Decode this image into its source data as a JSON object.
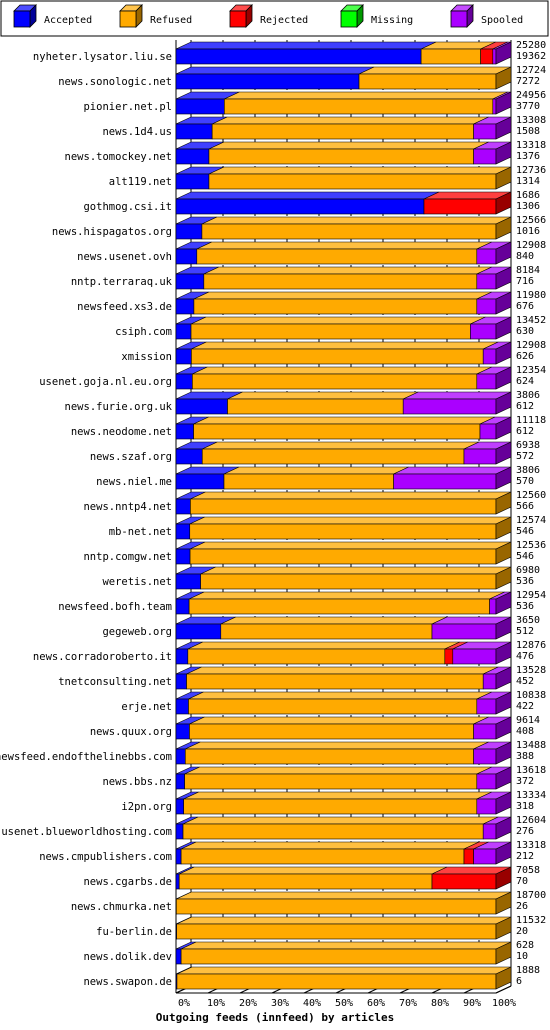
{
  "colors": {
    "Accepted": "#0000ff",
    "Refused": "#ffaa00",
    "Rejected": "#ff0000",
    "Missing": "#00ff00",
    "Spooled": "#aa00ff"
  },
  "chart_data": {
    "type": "bar",
    "orientation": "horizontal",
    "stacked": true,
    "style": "3d",
    "title": "",
    "xlabel": "Outgoing feeds (innfeed) by articles",
    "ylabel": "",
    "xlim": [
      0,
      100
    ],
    "x_unit": "%",
    "xticks": [
      "0%",
      "10%",
      "20%",
      "30%",
      "40%",
      "50%",
      "60%",
      "70%",
      "80%",
      "90%",
      "100%"
    ],
    "grid": "vertical dashed",
    "legend": [
      "Accepted",
      "Refused",
      "Rejected",
      "Missing",
      "Spooled"
    ],
    "legend_position": "top",
    "categories": [
      "nyheter.lysator.liu.se",
      "news.sonologic.net",
      "pionier.net.pl",
      "news.1d4.us",
      "news.tomockey.net",
      "alt119.net",
      "gothmog.csi.it",
      "news.hispagatos.org",
      "news.usenet.ovh",
      "nntp.terraraq.uk",
      "newsfeed.xs3.de",
      "csiph.com",
      "xmission",
      "usenet.goja.nl.eu.org",
      "news.furie.org.uk",
      "news.neodome.net",
      "news.szaf.org",
      "news.niel.me",
      "news.nntp4.net",
      "mb-net.net",
      "nntp.comgw.net",
      "weretis.net",
      "newsfeed.bofh.team",
      "gegeweb.org",
      "news.corradoroberto.it",
      "tnetconsulting.net",
      "erje.net",
      "news.quux.org",
      "newsfeed.endofthelinebbs.com",
      "news.bbs.nz",
      "i2pn.org",
      "usenet.blueworldhosting.com",
      "news.cmpublishers.com",
      "news.cgarbs.de",
      "news.chmurka.net",
      "fu-berlin.de",
      "news.dolik.dev",
      "news.swapon.de"
    ],
    "offered": [
      25280,
      12724,
      24956,
      13308,
      13318,
      12736,
      1686,
      12566,
      12908,
      8184,
      11980,
      13452,
      12908,
      12354,
      3806,
      11118,
      6938,
      3806,
      12560,
      12574,
      12536,
      6980,
      12954,
      3650,
      12876,
      13528,
      10838,
      9614,
      13488,
      13618,
      13334,
      12604,
      13318,
      7058,
      18700,
      11532,
      628,
      1888
    ],
    "accepted": [
      19362,
      7272,
      3770,
      1508,
      1376,
      1314,
      1306,
      1016,
      840,
      716,
      676,
      630,
      626,
      624,
      612,
      612,
      572,
      570,
      566,
      546,
      546,
      536,
      536,
      512,
      476,
      452,
      422,
      408,
      388,
      372,
      318,
      276,
      212,
      70,
      26,
      20,
      10,
      6
    ],
    "series": [
      {
        "name": "Accepted",
        "values": [
          76.6,
          57.2,
          15.1,
          11.3,
          10.3,
          10.3,
          77.5,
          8.1,
          6.5,
          8.7,
          5.6,
          4.7,
          4.8,
          5.1,
          16.1,
          5.5,
          8.2,
          15.0,
          4.5,
          4.3,
          4.4,
          7.7,
          4.1,
          14.0,
          3.7,
          3.3,
          3.9,
          4.2,
          2.9,
          2.7,
          2.4,
          2.2,
          1.6,
          1.0,
          0.1,
          0.2,
          1.6,
          0.3
        ]
      },
      {
        "name": "Refused",
        "values": [
          18.6,
          42.8,
          83.9,
          81.7,
          82.7,
          89.7,
          0.0,
          91.9,
          87.5,
          85.3,
          88.4,
          87.3,
          91.2,
          88.9,
          54.9,
          89.5,
          81.8,
          53.0,
          95.5,
          95.7,
          95.6,
          92.3,
          93.9,
          66.0,
          80.3,
          92.7,
          90.1,
          88.8,
          90.1,
          91.3,
          91.6,
          93.8,
          88.4,
          79.0,
          99.9,
          99.8,
          98.4,
          99.7
        ]
      },
      {
        "name": "Rejected",
        "values": [
          3.8,
          0.0,
          0.0,
          0.0,
          0.0,
          0.0,
          22.5,
          0.0,
          0.0,
          0.0,
          0.0,
          0.0,
          0.0,
          0.0,
          0.0,
          0.0,
          0.0,
          0.0,
          0.0,
          0.0,
          0.0,
          0.0,
          0.0,
          0.0,
          2.5,
          0.0,
          0.0,
          0.0,
          0.0,
          0.0,
          0.0,
          0.0,
          3.0,
          20.0,
          0.0,
          0.0,
          0.0,
          0.0
        ]
      },
      {
        "name": "Missing",
        "values": [
          0,
          0,
          0,
          0,
          0,
          0,
          0,
          0,
          0,
          0,
          0,
          0,
          0,
          0,
          0,
          0,
          0,
          0,
          0,
          0,
          0,
          0,
          0,
          0,
          0,
          0,
          0,
          0,
          0,
          0,
          0,
          0,
          0,
          0,
          0,
          0,
          0,
          0
        ]
      },
      {
        "name": "Spooled",
        "values": [
          1.0,
          0.0,
          1.0,
          7.0,
          7.0,
          0.0,
          0.0,
          0.0,
          6.0,
          6.0,
          6.0,
          8.0,
          4.0,
          6.0,
          29.0,
          5.0,
          10.0,
          32.0,
          0.0,
          0.0,
          0.0,
          0.0,
          2.0,
          20.0,
          13.5,
          4.0,
          6.0,
          7.0,
          7.0,
          6.0,
          6.0,
          4.0,
          7.0,
          0.0,
          0.0,
          0.0,
          0.0,
          0.0
        ]
      }
    ]
  }
}
